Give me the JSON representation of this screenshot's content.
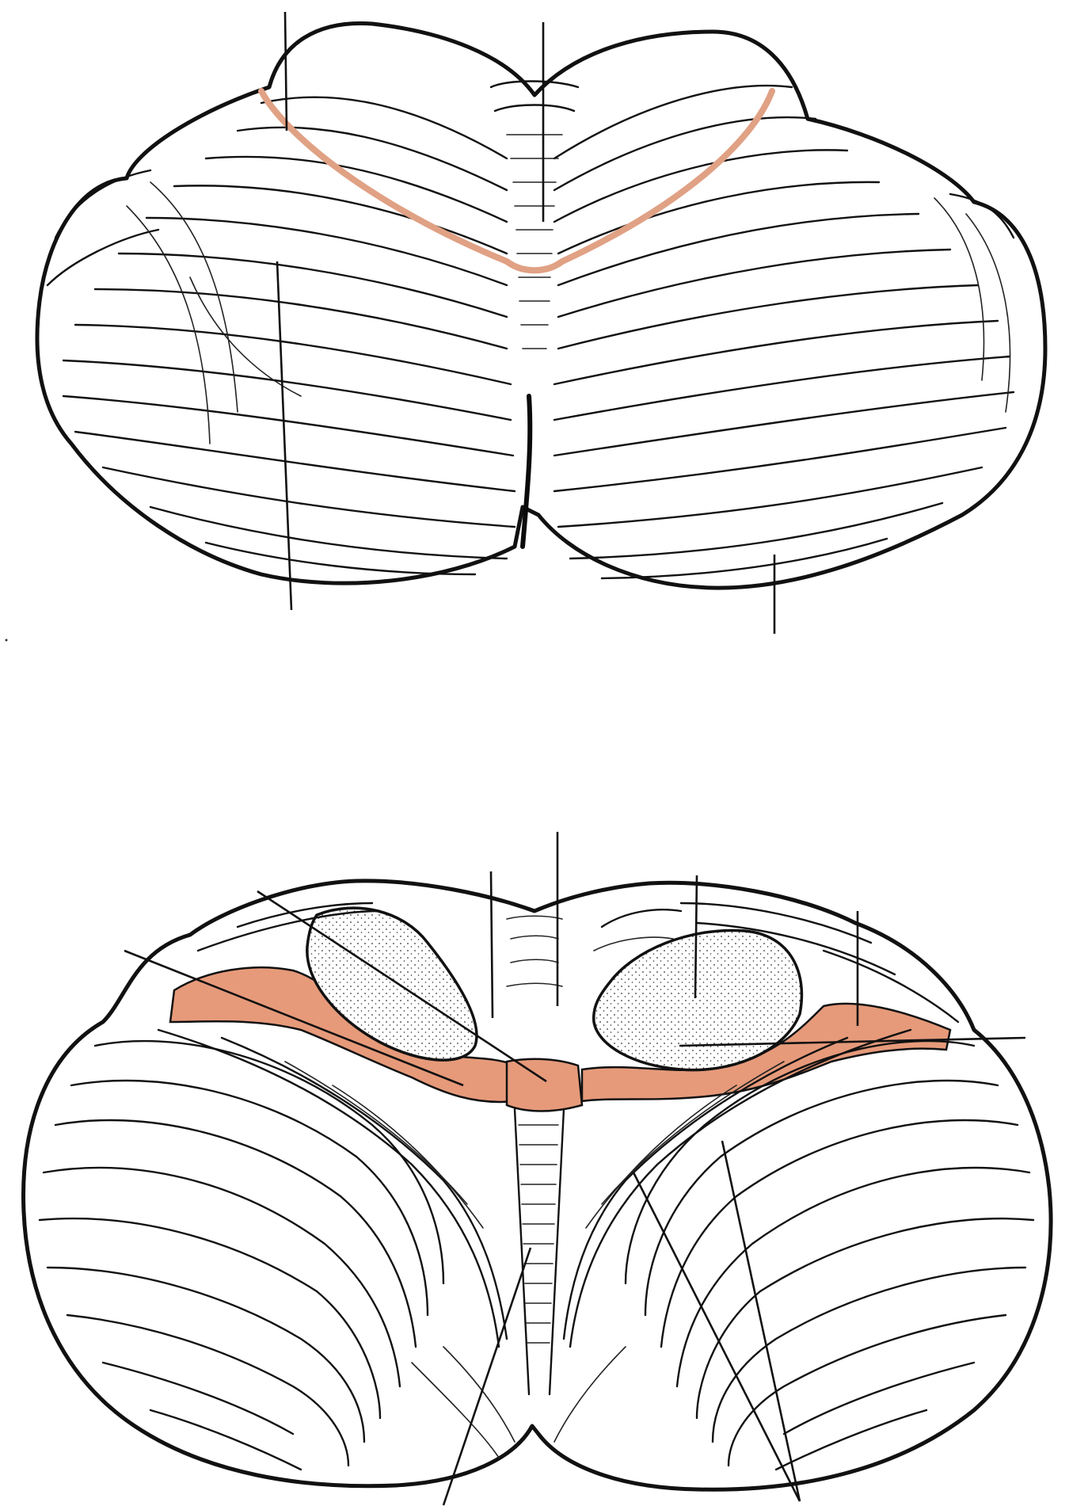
{
  "figure": {
    "panels": [
      {
        "id": "superior-view",
        "leader_count": 4
      },
      {
        "id": "inferior-view",
        "leader_count": 10
      }
    ],
    "colors": {
      "line_art": "#111111",
      "background": "#ffffff",
      "highlight_fissure": "#e0a184",
      "highlight_region": "#e69a7a"
    },
    "labels": []
  }
}
